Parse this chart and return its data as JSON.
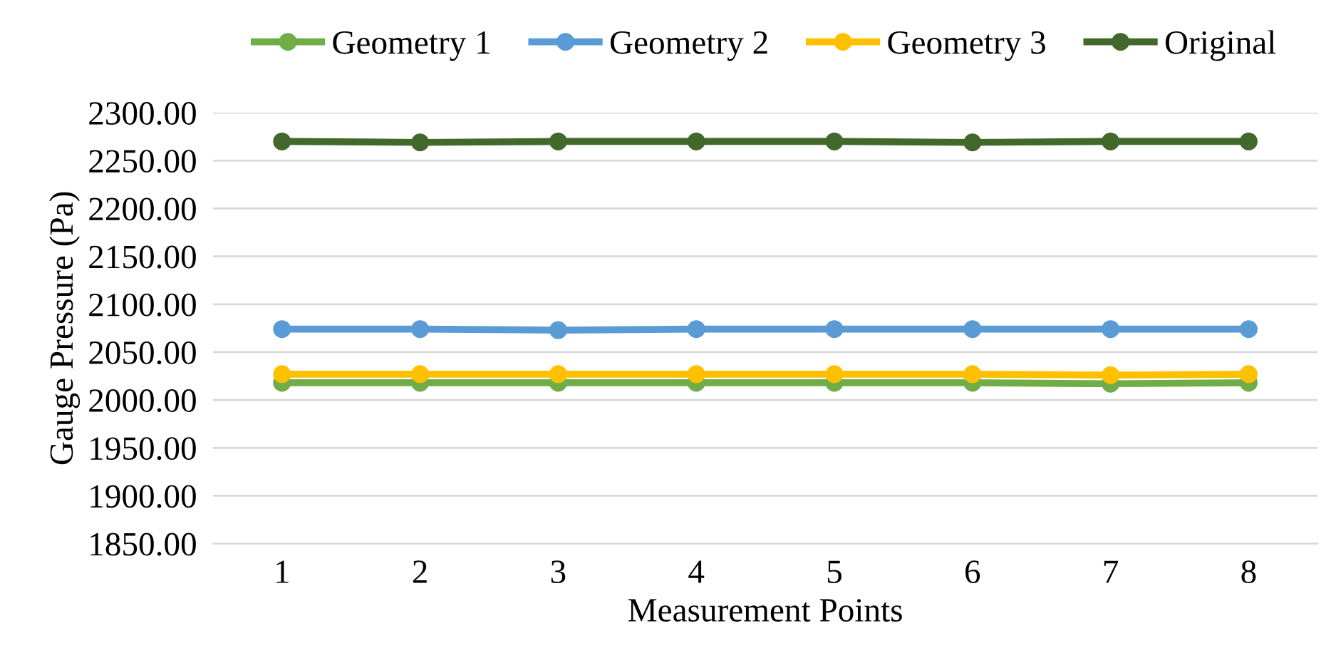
{
  "chart_data": {
    "type": "line",
    "xlabel": "Measurement Points",
    "ylabel": "Gauge Pressure (Pa)",
    "categories": [
      "1",
      "2",
      "3",
      "4",
      "5",
      "6",
      "7",
      "8"
    ],
    "series": [
      {
        "name": "Geometry 1",
        "color": "#70ad47",
        "values": [
          2018,
          2018,
          2018,
          2018,
          2018,
          2018,
          2017,
          2018
        ]
      },
      {
        "name": "Geometry 2",
        "color": "#5b9bd5",
        "values": [
          2074,
          2074,
          2073,
          2074,
          2074,
          2074,
          2074,
          2074
        ]
      },
      {
        "name": "Geometry 3",
        "color": "#ffc000",
        "values": [
          2027,
          2027,
          2027,
          2027,
          2027,
          2027,
          2026,
          2027
        ]
      },
      {
        "name": "Original",
        "color": "#43682b",
        "values": [
          2270,
          2269,
          2270,
          2270,
          2270,
          2269,
          2270,
          2270
        ]
      }
    ],
    "ylim": [
      1850,
      2300
    ],
    "yticks": [
      {
        "value": 1850,
        "label": "1850.00"
      },
      {
        "value": 1900,
        "label": "1900.00"
      },
      {
        "value": 1950,
        "label": "1950.00"
      },
      {
        "value": 2000,
        "label": "2000.00"
      },
      {
        "value": 2050,
        "label": "2050.00"
      },
      {
        "value": 2100,
        "label": "2100.00"
      },
      {
        "value": 2150,
        "label": "2150.00"
      },
      {
        "value": 2200,
        "label": "2200.00"
      },
      {
        "value": 2250,
        "label": "2250.00"
      },
      {
        "value": 2300,
        "label": "2300.00"
      }
    ],
    "grid": "y",
    "legend": "top",
    "marker": "circle",
    "line_style": "solid"
  }
}
